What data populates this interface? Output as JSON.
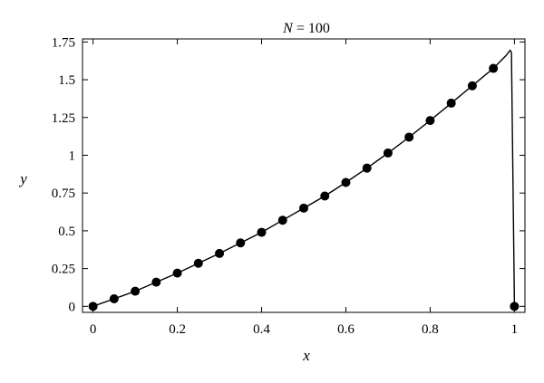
{
  "chart_data": {
    "type": "line",
    "title_var": "N",
    "title_rest": " = 100",
    "xlabel": "x",
    "ylabel": "y",
    "xlim": [
      -0.025,
      1.025
    ],
    "ylim": [
      -0.04,
      1.77
    ],
    "x_ticks": [
      0,
      0.2,
      0.4,
      0.6,
      0.8,
      1
    ],
    "x_tick_labels": [
      "0",
      "0.2",
      "0.4",
      "0.6",
      "0.8",
      "1"
    ],
    "y_ticks": [
      0,
      0.25,
      0.5,
      0.75,
      1,
      1.25,
      1.5,
      1.75
    ],
    "y_tick_labels": [
      "0",
      "0.25",
      "0.5",
      "0.75",
      "1",
      "1.25",
      "1.5",
      "1.75"
    ],
    "grid": false,
    "series": [
      {
        "kind": "line",
        "x": [
          0,
          0.05,
          0.1,
          0.15,
          0.2,
          0.25,
          0.3,
          0.35,
          0.4,
          0.45,
          0.5,
          0.55,
          0.6,
          0.65,
          0.7,
          0.75,
          0.8,
          0.85,
          0.9,
          0.95,
          0.98,
          0.99,
          0.993,
          1.0
        ],
        "y": [
          0,
          0.05,
          0.1,
          0.16,
          0.22,
          0.285,
          0.35,
          0.42,
          0.49,
          0.57,
          0.65,
          0.73,
          0.82,
          0.915,
          1.015,
          1.12,
          1.23,
          1.345,
          1.46,
          1.575,
          1.66,
          1.695,
          1.68,
          0.0
        ]
      },
      {
        "kind": "points",
        "x": [
          0,
          0.05,
          0.1,
          0.15,
          0.2,
          0.25,
          0.3,
          0.35,
          0.4,
          0.45,
          0.5,
          0.55,
          0.6,
          0.65,
          0.7,
          0.75,
          0.8,
          0.85,
          0.9,
          0.95,
          1.0
        ],
        "y": [
          0,
          0.05,
          0.1,
          0.16,
          0.22,
          0.285,
          0.35,
          0.42,
          0.49,
          0.57,
          0.65,
          0.73,
          0.82,
          0.915,
          1.015,
          1.12,
          1.23,
          1.345,
          1.46,
          1.575,
          0.0
        ]
      }
    ]
  }
}
